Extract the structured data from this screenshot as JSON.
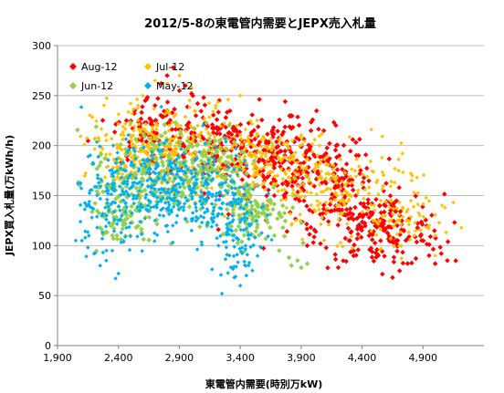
{
  "chart_data": {
    "type": "scatter",
    "title": "2012/5-8の東電管内需要とJEPX売入札量",
    "xlabel": "東電管内需要(時別万kW)",
    "ylabel": "JEPX買入札量(万kWh/h)",
    "xlim": [
      1900,
      5400
    ],
    "ylim": [
      0,
      300
    ],
    "x_ticks": [
      1900,
      2400,
      2900,
      3400,
      3900,
      4400,
      4900
    ],
    "x_tick_labels": [
      "1,900",
      "2,400",
      "2,900",
      "3,400",
      "3,900",
      "4,400",
      "4,900"
    ],
    "y_ticks": [
      0,
      50,
      100,
      150,
      200,
      250,
      300
    ],
    "y_tick_labels": [
      "0",
      "50",
      "100",
      "150",
      "200",
      "250",
      "300"
    ],
    "grid": {
      "horizontal": true,
      "vertical": false
    },
    "legend": {
      "placement": "top-left-inside"
    },
    "series": [
      {
        "name": "Aug-12",
        "color": "#ff0000",
        "marker": "diamond",
        "marker_size": 5.5,
        "clusters": [
          {
            "cx": 3250,
            "cy": 200,
            "sx": 380,
            "sy": 20,
            "n": 260
          },
          {
            "cx": 3900,
            "cy": 172,
            "sx": 300,
            "sy": 22,
            "n": 200
          },
          {
            "cx": 4550,
            "cy": 115,
            "sx": 260,
            "sy": 18,
            "n": 190
          },
          {
            "cx": 2650,
            "cy": 222,
            "sx": 130,
            "sy": 14,
            "n": 50
          },
          {
            "cx": 4250,
            "cy": 148,
            "sx": 160,
            "sy": 18,
            "n": 60
          }
        ],
        "points": [
          [
            2800,
            270
          ],
          [
            2850,
            278
          ],
          [
            2750,
            262
          ],
          [
            2900,
            255
          ],
          [
            3000,
            252
          ],
          [
            2950,
            260
          ],
          [
            2620,
            245
          ],
          [
            3100,
            248
          ],
          [
            2700,
            240
          ],
          [
            3050,
            242
          ],
          [
            4950,
            90
          ],
          [
            5050,
            92
          ],
          [
            5100,
            85
          ],
          [
            5000,
            82
          ],
          [
            4650,
            68
          ],
          [
            3950,
            100
          ],
          [
            4300,
            105
          ],
          [
            4000,
            103
          ]
        ]
      },
      {
        "name": "Jul-12",
        "color": "#ffc000",
        "marker": "diamond",
        "marker_size": 4.5,
        "clusters": [
          {
            "cx": 2750,
            "cy": 198,
            "sx": 280,
            "sy": 22,
            "n": 260
          },
          {
            "cx": 3600,
            "cy": 182,
            "sx": 260,
            "sy": 18,
            "n": 200
          },
          {
            "cx": 4200,
            "cy": 152,
            "sx": 320,
            "sy": 22,
            "n": 180
          },
          {
            "cx": 2450,
            "cy": 190,
            "sx": 120,
            "sy": 15,
            "n": 60
          },
          {
            "cx": 4700,
            "cy": 122,
            "sx": 180,
            "sy": 15,
            "n": 60
          }
        ],
        "points": [
          [
            2700,
            265
          ],
          [
            2800,
            262
          ],
          [
            2900,
            270
          ],
          [
            2600,
            250
          ],
          [
            3000,
            258
          ],
          [
            2500,
            242
          ],
          [
            3200,
            240
          ],
          [
            4700,
            175
          ],
          [
            4800,
            172
          ],
          [
            4850,
            168
          ],
          [
            4950,
            120
          ],
          [
            5000,
            110
          ],
          [
            2300,
            205
          ],
          [
            3400,
            250
          ],
          [
            3300,
            246
          ],
          [
            4050,
            200
          ]
        ]
      },
      {
        "name": "Jun-12",
        "color": "#92d050",
        "marker": "diamond",
        "marker_size": 5.5,
        "clusters": [
          {
            "cx": 2750,
            "cy": 168,
            "sx": 280,
            "sy": 26,
            "n": 260
          },
          {
            "cx": 3520,
            "cy": 135,
            "sx": 140,
            "sy": 15,
            "n": 110
          },
          {
            "cx": 2400,
            "cy": 128,
            "sx": 120,
            "sy": 14,
            "n": 60
          },
          {
            "cx": 3200,
            "cy": 185,
            "sx": 120,
            "sy": 12,
            "n": 60
          }
        ],
        "points": [
          [
            3800,
            88
          ],
          [
            3820,
            80
          ],
          [
            3900,
            78
          ],
          [
            3870,
            85
          ],
          [
            3720,
            95
          ],
          [
            3950,
            82
          ],
          [
            3680,
            110
          ],
          [
            3750,
            118
          ],
          [
            3300,
            120
          ],
          [
            2350,
            110
          ],
          [
            2250,
            118
          ],
          [
            2900,
            200
          ]
        ]
      },
      {
        "name": "May-12",
        "color": "#00b0f0",
        "marker": "diamond",
        "marker_size": 4.5,
        "clusters": [
          {
            "cx": 2650,
            "cy": 160,
            "sx": 280,
            "sy": 22,
            "n": 280
          },
          {
            "cx": 3150,
            "cy": 150,
            "sx": 200,
            "sy": 24,
            "n": 160
          },
          {
            "cx": 3400,
            "cy": 112,
            "sx": 100,
            "sy": 24,
            "n": 80
          },
          {
            "cx": 2300,
            "cy": 140,
            "sx": 120,
            "sy": 24,
            "n": 80
          }
        ],
        "points": [
          [
            2050,
            105
          ],
          [
            2100,
            105
          ],
          [
            2150,
            98
          ],
          [
            2200,
            92
          ],
          [
            2300,
            85
          ],
          [
            2350,
            95
          ],
          [
            2400,
            72
          ],
          [
            2250,
            80
          ],
          [
            3250,
            52
          ],
          [
            3400,
            60
          ],
          [
            3450,
            70
          ],
          [
            3500,
            75
          ],
          [
            3350,
            68
          ],
          [
            2700,
            125
          ],
          [
            3100,
            128
          ],
          [
            2800,
            120
          ],
          [
            3000,
            115
          ]
        ]
      }
    ]
  }
}
